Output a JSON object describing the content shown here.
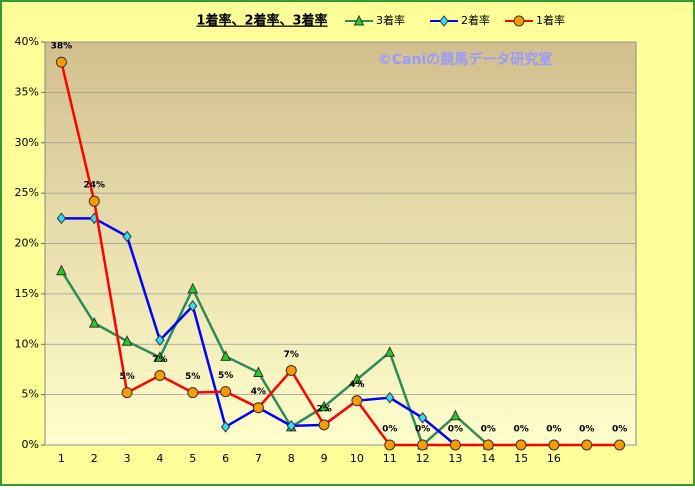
{
  "chart_data": {
    "type": "line",
    "title": "1着率、2着率、3着率",
    "watermark": "©Caniの競馬データ研究室",
    "categories": [
      "1",
      "2",
      "3",
      "4",
      "5",
      "6",
      "7",
      "8",
      "9",
      "10",
      "11",
      "12",
      "13",
      "14",
      "15",
      "16",
      null,
      null
    ],
    "ylim": [
      0,
      40
    ],
    "yticks": [
      {
        "value": 0,
        "label": "0%"
      },
      {
        "value": 5,
        "label": "5%"
      },
      {
        "value": 10,
        "label": "10%"
      },
      {
        "value": 15,
        "label": "15%"
      },
      {
        "value": 20,
        "label": "20%"
      },
      {
        "value": 25,
        "label": "25%"
      },
      {
        "value": 30,
        "label": "30%"
      },
      {
        "value": 35,
        "label": "35%"
      },
      {
        "value": 40,
        "label": "40%"
      }
    ],
    "grid": true,
    "series": [
      {
        "name": "3着率",
        "color": "#2e8b57",
        "marker": "triangle",
        "marker_color": "#22cc22",
        "values": [
          17.3,
          12.1,
          10.3,
          8.7,
          15.5,
          8.8,
          7.2,
          1.8,
          3.8,
          6.5,
          9.2,
          0,
          2.9,
          0,
          null,
          null,
          null,
          null
        ]
      },
      {
        "name": "2着率",
        "color": "#0000ff",
        "marker": "diamond",
        "marker_color": "#33ddff",
        "values": [
          22.5,
          22.5,
          20.7,
          10.4,
          13.8,
          1.8,
          3.7,
          1.9,
          2.0,
          4.4,
          4.7,
          2.7,
          0,
          null,
          null,
          null,
          null,
          null
        ]
      },
      {
        "name": "1着率",
        "color": "#ff0000",
        "marker": "circle",
        "marker_color": "#ff9900",
        "values": [
          38.0,
          24.2,
          5.2,
          6.9,
          5.2,
          5.3,
          3.7,
          7.4,
          2.0,
          4.4,
          0,
          0,
          0,
          0,
          0,
          0,
          0,
          0
        ],
        "value_labels": [
          "38%",
          "24%",
          "5%",
          "7%",
          "5%",
          "5%",
          "4%",
          "7%",
          "2%",
          "4%",
          "0%",
          "0%",
          "0%",
          "0%",
          "0%",
          "0%",
          "0%",
          "0%"
        ]
      }
    ]
  }
}
